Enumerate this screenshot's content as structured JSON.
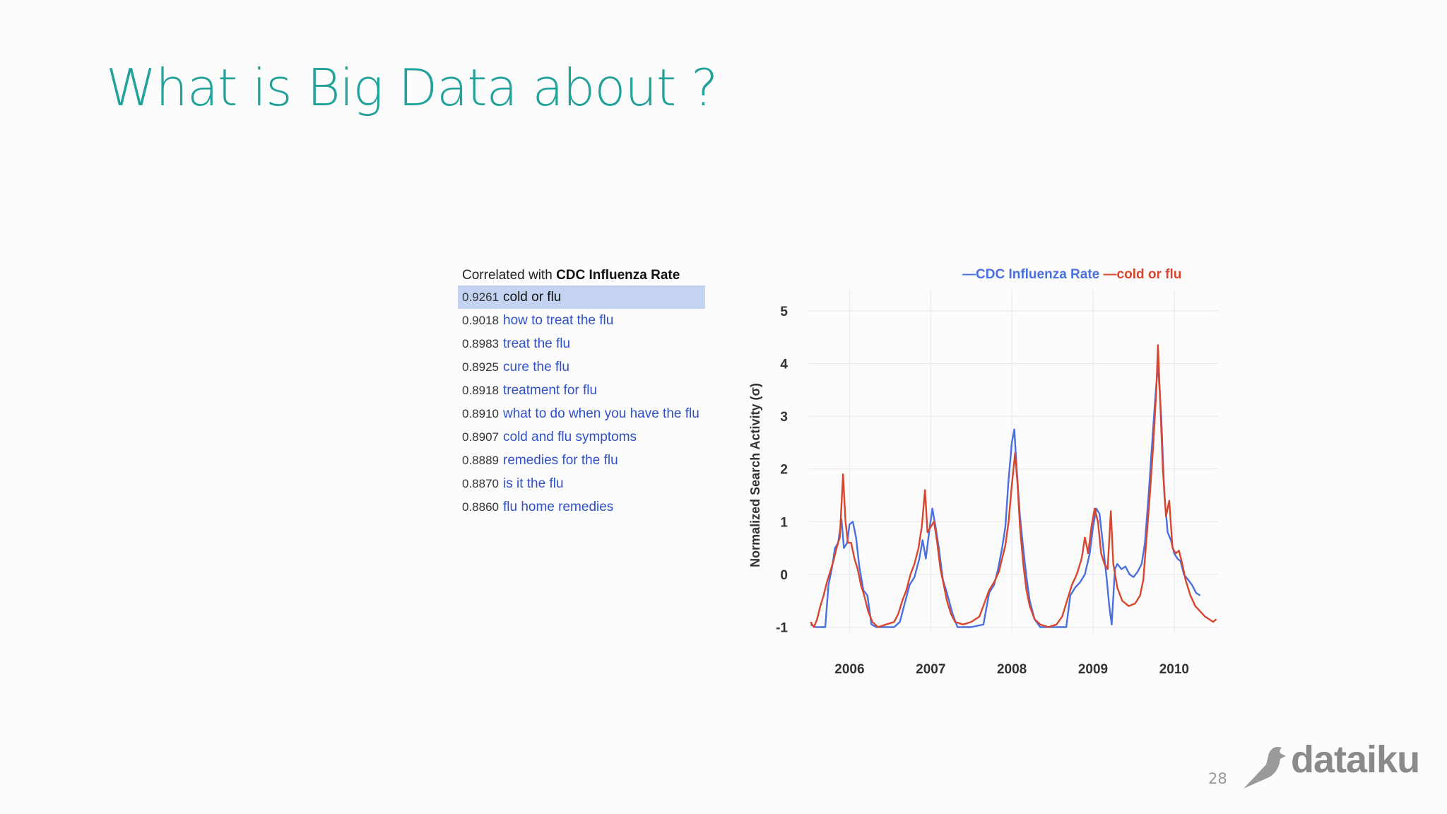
{
  "slide": {
    "title": "What is Big Data about ?",
    "page_number": "28",
    "logo_text": "dataiku"
  },
  "correlation_panel": {
    "header_prefix": "Correlated with ",
    "header_bold": "CDC Influenza Rate",
    "rows": [
      {
        "score": "0.9261",
        "term": "cold or flu",
        "selected": true
      },
      {
        "score": "0.9018",
        "term": "how to treat the flu"
      },
      {
        "score": "0.8983",
        "term": "treat the flu"
      },
      {
        "score": "0.8925",
        "term": "cure the flu"
      },
      {
        "score": "0.8918",
        "term": "treatment for flu"
      },
      {
        "score": "0.8910",
        "term": "what to do when you have the flu"
      },
      {
        "score": "0.8907",
        "term": "cold and flu symptoms"
      },
      {
        "score": "0.8889",
        "term": "remedies for the flu"
      },
      {
        "score": "0.8870",
        "term": "is it the flu"
      },
      {
        "score": "0.8860",
        "term": "flu home remedies"
      }
    ]
  },
  "chart_data": {
    "type": "line",
    "title": "",
    "xlabel": "",
    "ylabel": "Normalized Search Activity (σ)",
    "xlim": [
      2005.5,
      2010.55
    ],
    "ylim": [
      -1.1,
      5.4
    ],
    "x_ticks": [
      2006,
      2007,
      2008,
      2009,
      2010
    ],
    "y_ticks": [
      -1,
      0,
      1,
      2,
      3,
      4,
      5
    ],
    "grid": true,
    "legend_placement": "top",
    "series": [
      {
        "name": "CDC Influenza Rate",
        "color": "#4a6fe0",
        "points": [
          [
            2005.52,
            -0.95
          ],
          [
            2005.58,
            -1.0
          ],
          [
            2005.64,
            -1.0
          ],
          [
            2005.7,
            -1.0
          ],
          [
            2005.74,
            -0.2
          ],
          [
            2005.78,
            0.1
          ],
          [
            2005.82,
            0.5
          ],
          [
            2005.86,
            0.6
          ],
          [
            2005.9,
            1.05
          ],
          [
            2005.93,
            0.5
          ],
          [
            2005.97,
            0.6
          ],
          [
            2006.0,
            0.95
          ],
          [
            2006.04,
            1.0
          ],
          [
            2006.08,
            0.7
          ],
          [
            2006.12,
            0.15
          ],
          [
            2006.17,
            -0.3
          ],
          [
            2006.22,
            -0.4
          ],
          [
            2006.27,
            -0.95
          ],
          [
            2006.33,
            -1.0
          ],
          [
            2006.45,
            -1.0
          ],
          [
            2006.55,
            -1.0
          ],
          [
            2006.62,
            -0.9
          ],
          [
            2006.68,
            -0.55
          ],
          [
            2006.74,
            -0.2
          ],
          [
            2006.8,
            -0.05
          ],
          [
            2006.86,
            0.3
          ],
          [
            2006.9,
            0.65
          ],
          [
            2006.94,
            0.3
          ],
          [
            2006.98,
            0.8
          ],
          [
            2007.02,
            1.25
          ],
          [
            2007.06,
            0.9
          ],
          [
            2007.1,
            0.5
          ],
          [
            2007.15,
            -0.1
          ],
          [
            2007.2,
            -0.35
          ],
          [
            2007.27,
            -0.75
          ],
          [
            2007.33,
            -1.0
          ],
          [
            2007.5,
            -1.0
          ],
          [
            2007.65,
            -0.95
          ],
          [
            2007.72,
            -0.35
          ],
          [
            2007.78,
            -0.2
          ],
          [
            2007.83,
            0.1
          ],
          [
            2007.88,
            0.5
          ],
          [
            2007.92,
            0.9
          ],
          [
            2007.96,
            1.8
          ],
          [
            2008.0,
            2.5
          ],
          [
            2008.03,
            2.75
          ],
          [
            2008.06,
            2.0
          ],
          [
            2008.1,
            1.1
          ],
          [
            2008.14,
            0.5
          ],
          [
            2008.18,
            -0.05
          ],
          [
            2008.22,
            -0.5
          ],
          [
            2008.28,
            -0.85
          ],
          [
            2008.35,
            -1.0
          ],
          [
            2008.5,
            -1.0
          ],
          [
            2008.6,
            -1.0
          ],
          [
            2008.67,
            -1.0
          ],
          [
            2008.72,
            -0.4
          ],
          [
            2008.78,
            -0.25
          ],
          [
            2008.84,
            -0.15
          ],
          [
            2008.9,
            0.0
          ],
          [
            2008.96,
            0.4
          ],
          [
            2009.0,
            0.9
          ],
          [
            2009.04,
            1.25
          ],
          [
            2009.08,
            1.15
          ],
          [
            2009.12,
            0.6
          ],
          [
            2009.17,
            -0.1
          ],
          [
            2009.2,
            -0.6
          ],
          [
            2009.23,
            -0.95
          ],
          [
            2009.27,
            0.1
          ],
          [
            2009.3,
            0.2
          ],
          [
            2009.35,
            0.1
          ],
          [
            2009.4,
            0.15
          ],
          [
            2009.45,
            0.0
          ],
          [
            2009.5,
            -0.05
          ],
          [
            2009.55,
            0.05
          ],
          [
            2009.6,
            0.2
          ],
          [
            2009.64,
            0.6
          ],
          [
            2009.68,
            1.4
          ],
          [
            2009.72,
            2.3
          ],
          [
            2009.76,
            3.2
          ],
          [
            2009.8,
            4.0
          ],
          [
            2009.84,
            3.0
          ],
          [
            2009.88,
            1.5
          ],
          [
            2009.92,
            0.8
          ],
          [
            2009.96,
            0.65
          ],
          [
            2010.0,
            0.4
          ],
          [
            2010.04,
            0.3
          ],
          [
            2010.08,
            0.25
          ],
          [
            2010.12,
            0.0
          ],
          [
            2010.17,
            -0.1
          ],
          [
            2010.22,
            -0.2
          ],
          [
            2010.27,
            -0.35
          ],
          [
            2010.32,
            -0.4
          ]
        ]
      },
      {
        "name": "cold or flu",
        "color": "#d9452d",
        "points": [
          [
            2005.52,
            -0.9
          ],
          [
            2005.56,
            -1.0
          ],
          [
            2005.6,
            -0.85
          ],
          [
            2005.64,
            -0.6
          ],
          [
            2005.68,
            -0.4
          ],
          [
            2005.72,
            -0.15
          ],
          [
            2005.76,
            0.05
          ],
          [
            2005.8,
            0.25
          ],
          [
            2005.84,
            0.5
          ],
          [
            2005.88,
            0.7
          ],
          [
            2005.92,
            1.9
          ],
          [
            2005.95,
            1.0
          ],
          [
            2005.98,
            0.6
          ],
          [
            2006.02,
            0.6
          ],
          [
            2006.06,
            0.3
          ],
          [
            2006.1,
            0.1
          ],
          [
            2006.14,
            -0.2
          ],
          [
            2006.18,
            -0.4
          ],
          [
            2006.23,
            -0.7
          ],
          [
            2006.28,
            -0.9
          ],
          [
            2006.35,
            -1.0
          ],
          [
            2006.45,
            -0.95
          ],
          [
            2006.55,
            -0.9
          ],
          [
            2006.6,
            -0.75
          ],
          [
            2006.65,
            -0.5
          ],
          [
            2006.7,
            -0.3
          ],
          [
            2006.75,
            0.0
          ],
          [
            2006.8,
            0.2
          ],
          [
            2006.85,
            0.5
          ],
          [
            2006.89,
            0.9
          ],
          [
            2006.93,
            1.6
          ],
          [
            2006.96,
            0.8
          ],
          [
            2007.0,
            0.9
          ],
          [
            2007.04,
            1.0
          ],
          [
            2007.08,
            0.6
          ],
          [
            2007.12,
            0.1
          ],
          [
            2007.16,
            -0.2
          ],
          [
            2007.2,
            -0.5
          ],
          [
            2007.25,
            -0.75
          ],
          [
            2007.3,
            -0.9
          ],
          [
            2007.4,
            -0.95
          ],
          [
            2007.5,
            -0.9
          ],
          [
            2007.6,
            -0.8
          ],
          [
            2007.66,
            -0.55
          ],
          [
            2007.72,
            -0.3
          ],
          [
            2007.78,
            -0.15
          ],
          [
            2007.84,
            0.05
          ],
          [
            2007.88,
            0.3
          ],
          [
            2007.92,
            0.55
          ],
          [
            2007.96,
            1.0
          ],
          [
            2008.0,
            1.7
          ],
          [
            2008.04,
            2.3
          ],
          [
            2008.07,
            1.7
          ],
          [
            2008.1,
            0.9
          ],
          [
            2008.14,
            0.2
          ],
          [
            2008.18,
            -0.3
          ],
          [
            2008.22,
            -0.6
          ],
          [
            2008.28,
            -0.85
          ],
          [
            2008.35,
            -0.95
          ],
          [
            2008.45,
            -1.0
          ],
          [
            2008.55,
            -0.95
          ],
          [
            2008.62,
            -0.8
          ],
          [
            2008.68,
            -0.5
          ],
          [
            2008.74,
            -0.2
          ],
          [
            2008.8,
            0.0
          ],
          [
            2008.86,
            0.3
          ],
          [
            2008.9,
            0.7
          ],
          [
            2008.94,
            0.4
          ],
          [
            2008.98,
            0.9
          ],
          [
            2009.02,
            1.25
          ],
          [
            2009.06,
            1.0
          ],
          [
            2009.1,
            0.4
          ],
          [
            2009.14,
            0.2
          ],
          [
            2009.18,
            0.1
          ],
          [
            2009.22,
            1.2
          ],
          [
            2009.25,
            0.2
          ],
          [
            2009.3,
            -0.25
          ],
          [
            2009.36,
            -0.5
          ],
          [
            2009.44,
            -0.6
          ],
          [
            2009.52,
            -0.55
          ],
          [
            2009.58,
            -0.4
          ],
          [
            2009.62,
            -0.1
          ],
          [
            2009.66,
            0.7
          ],
          [
            2009.7,
            1.5
          ],
          [
            2009.74,
            2.4
          ],
          [
            2009.78,
            3.5
          ],
          [
            2009.8,
            4.35
          ],
          [
            2009.83,
            3.2
          ],
          [
            2009.86,
            2.0
          ],
          [
            2009.9,
            1.1
          ],
          [
            2009.94,
            1.4
          ],
          [
            2009.98,
            0.5
          ],
          [
            2010.02,
            0.4
          ],
          [
            2010.06,
            0.45
          ],
          [
            2010.1,
            0.2
          ],
          [
            2010.14,
            -0.1
          ],
          [
            2010.2,
            -0.4
          ],
          [
            2010.26,
            -0.6
          ],
          [
            2010.32,
            -0.7
          ],
          [
            2010.38,
            -0.8
          ],
          [
            2010.43,
            -0.85
          ],
          [
            2010.48,
            -0.9
          ],
          [
            2010.52,
            -0.85
          ]
        ]
      }
    ]
  }
}
